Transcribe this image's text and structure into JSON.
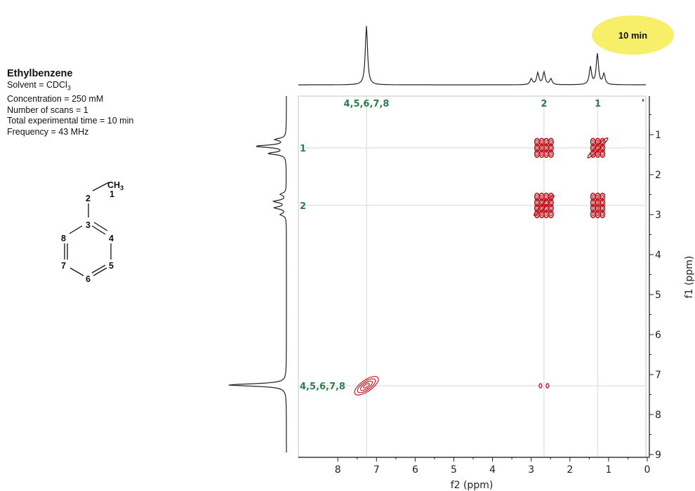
{
  "info": {
    "compound": "Ethylbenzene",
    "solvent_prefix": "Solvent = CDCl",
    "solvent_sub": "3",
    "concentration": "Concentration = 250 mM",
    "scans": "Number of scans = 1",
    "time": "Total experimental time = 10 min",
    "frequency": "Frequency = 43 MHz"
  },
  "badge": {
    "text": "10 min",
    "color": "#f7ef6a"
  },
  "molecule": {
    "ch3_label": "CH",
    "ch3_sub": "3",
    "atom_numbers": [
      "1",
      "2",
      "3",
      "4",
      "5",
      "6",
      "7",
      "8"
    ]
  },
  "chart_data": {
    "type": "2D NMR COSY contour",
    "xlabel": "f2 (ppm)",
    "ylabel": "f1 (ppm)",
    "xlim": [
      9,
      0
    ],
    "ylim": [
      0,
      9
    ],
    "x_ticks": [
      "8",
      "7",
      "6",
      "5",
      "4",
      "3",
      "2",
      "1",
      "0"
    ],
    "y_ticks": [
      "1",
      "2",
      "3",
      "4",
      "5",
      "6",
      "7",
      "8",
      "9"
    ],
    "grid": "at peak positions",
    "contour_color": "#c0121c",
    "label_color": "#2e7d52",
    "signals": [
      {
        "label": "4,5,6,7,8",
        "ppm": 7.26
      },
      {
        "label": "2",
        "ppm": 2.67
      },
      {
        "label": "1",
        "ppm": 1.28
      }
    ],
    "projection_peaks": [
      {
        "ppm": 7.26,
        "intensity": 1.0
      },
      {
        "ppm": 3.0,
        "intensity": 0.1
      },
      {
        "ppm": 2.83,
        "intensity": 0.2
      },
      {
        "ppm": 2.67,
        "intensity": 0.21
      },
      {
        "ppm": 2.49,
        "intensity": 0.1
      },
      {
        "ppm": 1.47,
        "intensity": 0.3
      },
      {
        "ppm": 1.29,
        "intensity": 0.52
      },
      {
        "ppm": 1.12,
        "intensity": 0.18
      }
    ],
    "cross_peaks": [
      {
        "f2": 1.28,
        "f1": 1.33,
        "type": "diagonal"
      },
      {
        "f2": 2.67,
        "f1": 2.77,
        "type": "diagonal"
      },
      {
        "f2": 7.26,
        "f1": 7.28,
        "type": "diagonal"
      },
      {
        "f2": 2.67,
        "f1": 1.33,
        "type": "cross"
      },
      {
        "f2": 1.28,
        "f1": 2.77,
        "type": "cross"
      },
      {
        "f2": 2.67,
        "f1": 7.28,
        "type": "weak"
      }
    ]
  }
}
